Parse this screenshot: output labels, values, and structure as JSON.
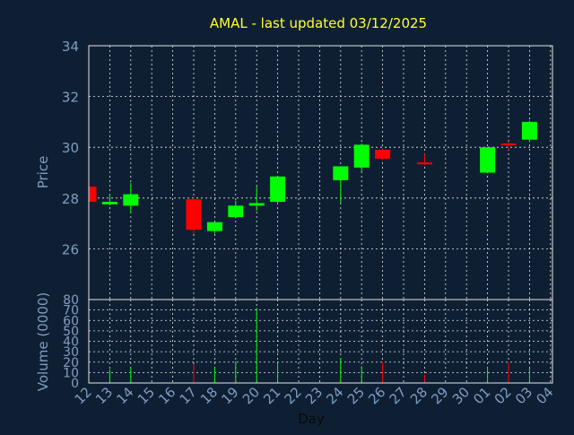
{
  "chart_data": {
    "type": "candlestick",
    "title": "AMAL - last updated 03/12/2025",
    "xlabel": "Day",
    "ylabel": "Price",
    "volume_ylabel": "Volume (0000)",
    "x_ticks": [
      "12",
      "13",
      "14",
      "15",
      "16",
      "17",
      "18",
      "19",
      "20",
      "21",
      "22",
      "23",
      "24",
      "25",
      "26",
      "27",
      "28",
      "29",
      "30",
      "01",
      "02",
      "03",
      "04"
    ],
    "price_ticks": [
      26,
      28,
      30,
      32,
      34
    ],
    "price_ylim": [
      24.0,
      34.0
    ],
    "volume_ticks": [
      0,
      10,
      20,
      30,
      40,
      50,
      60,
      70,
      80
    ],
    "volume_ylim": [
      0,
      80
    ],
    "up_color": "#00ff00",
    "down_color": "#ff0000",
    "grid": true,
    "candles": [
      {
        "day": "12",
        "open": 28.45,
        "close": 27.85,
        "high": 28.45,
        "low": 27.85,
        "volume": 0
      },
      {
        "day": "13",
        "open": 27.75,
        "close": 27.85,
        "high": 28.15,
        "low": 27.7,
        "volume": 13
      },
      {
        "day": "14",
        "open": 27.7,
        "close": 28.15,
        "high": 28.6,
        "low": 27.4,
        "volume": 15
      },
      {
        "day": "17",
        "open": 27.95,
        "close": 26.75,
        "high": 28.05,
        "low": 26.6,
        "volume": 18
      },
      {
        "day": "18",
        "open": 26.7,
        "close": 27.05,
        "high": 27.05,
        "low": 26.6,
        "volume": 15
      },
      {
        "day": "19",
        "open": 27.25,
        "close": 27.7,
        "high": 27.9,
        "low": 27.2,
        "volume": 21
      },
      {
        "day": "20",
        "open": 27.7,
        "close": 27.8,
        "high": 28.45,
        "low": 27.5,
        "volume": 72
      },
      {
        "day": "21",
        "open": 27.85,
        "close": 28.85,
        "high": 28.85,
        "low": 27.8,
        "volume": 19
      },
      {
        "day": "24",
        "open": 28.7,
        "close": 29.25,
        "high": 29.25,
        "low": 27.8,
        "volume": 24
      },
      {
        "day": "25",
        "open": 29.2,
        "close": 30.1,
        "high": 30.15,
        "low": 29.05,
        "volume": 16
      },
      {
        "day": "26",
        "open": 29.9,
        "close": 29.55,
        "high": 29.95,
        "low": 29.5,
        "volume": 20
      },
      {
        "day": "28",
        "open": 29.4,
        "close": 29.35,
        "high": 29.75,
        "low": 29.3,
        "volume": 8
      },
      {
        "day": "01",
        "open": 29.0,
        "close": 30.0,
        "high": 30.0,
        "low": 29.0,
        "volume": 15
      },
      {
        "day": "02",
        "open": 30.15,
        "close": 30.1,
        "high": 30.2,
        "low": 29.9,
        "volume": 20
      },
      {
        "day": "03",
        "open": 30.3,
        "close": 31.0,
        "high": 31.05,
        "low": 30.2,
        "volume": 14
      }
    ]
  }
}
